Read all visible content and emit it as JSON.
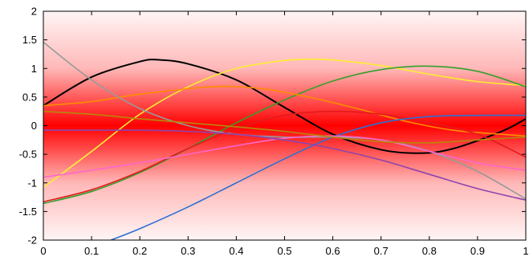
{
  "chart_data": {
    "type": "line",
    "title": "",
    "xlabel": "",
    "ylabel": "",
    "xlim": [
      0,
      1
    ],
    "ylim": [
      -2,
      2
    ],
    "grid": false,
    "x_ticks": [
      "0",
      "0.1",
      "0.2",
      "0.3",
      "0.4",
      "0.5",
      "0.6",
      "0.7",
      "0.8",
      "0.9",
      "1"
    ],
    "y_ticks": [
      "2",
      "1.5",
      "1",
      "0.5",
      "0",
      "-0.5",
      "-1",
      "-1.5",
      "-2"
    ],
    "band": {
      "description": "red shaded band, darkest at y = 0, fading to white at y = ±2",
      "color": "#ff0000"
    },
    "series": [
      {
        "color": "#000000",
        "x": [
          0,
          0.1,
          0.2,
          0.24,
          0.3,
          0.4,
          0.5,
          0.6,
          0.7,
          0.78,
          0.85,
          0.95,
          1
        ],
        "y": [
          0.35,
          0.85,
          1.12,
          1.15,
          1.08,
          0.8,
          0.32,
          -0.15,
          -0.42,
          -0.48,
          -0.4,
          -0.1,
          0.12
        ]
      },
      {
        "color": "#ffee33",
        "x": [
          0,
          0.1,
          0.2,
          0.3,
          0.4,
          0.5,
          0.55,
          0.6,
          0.7,
          0.8,
          0.9,
          1
        ],
        "y": [
          -1.08,
          -0.45,
          0.2,
          0.68,
          1.0,
          1.14,
          1.16,
          1.15,
          1.05,
          0.9,
          0.77,
          0.7
        ]
      },
      {
        "color": "#33a02c",
        "x": [
          0,
          0.1,
          0.2,
          0.3,
          0.4,
          0.5,
          0.6,
          0.7,
          0.8,
          0.9,
          1
        ],
        "y": [
          -1.36,
          -1.15,
          -0.82,
          -0.4,
          0.05,
          0.45,
          0.78,
          0.98,
          1.04,
          0.95,
          0.68
        ]
      },
      {
        "color": "#ff8c00",
        "x": [
          0,
          0.1,
          0.2,
          0.35,
          0.45,
          0.55,
          0.65,
          0.75,
          0.85,
          0.95,
          1
        ],
        "y": [
          0.35,
          0.42,
          0.55,
          0.68,
          0.65,
          0.5,
          0.3,
          0.08,
          -0.08,
          -0.15,
          -0.18
        ]
      },
      {
        "color": "#999999",
        "x": [
          0,
          0.1,
          0.2,
          0.3,
          0.4,
          0.5,
          0.6,
          0.7,
          0.8,
          0.9,
          1
        ],
        "y": [
          1.46,
          0.8,
          0.3,
          0.0,
          -0.15,
          -0.2,
          -0.2,
          -0.25,
          -0.45,
          -0.8,
          -1.28
        ]
      },
      {
        "color": "#e31a1c",
        "x": [
          0,
          0.1,
          0.2,
          0.3,
          0.4,
          0.5,
          0.6,
          0.7,
          0.8,
          0.9,
          1
        ],
        "y": [
          -1.33,
          -1.12,
          -0.8,
          -0.4,
          -0.05,
          0.18,
          0.25,
          0.2,
          0.05,
          -0.15,
          -0.55
        ]
      },
      {
        "color": "#2f6fd0",
        "x": [
          0.14,
          0.2,
          0.3,
          0.4,
          0.5,
          0.6,
          0.7,
          0.8,
          0.9,
          1
        ],
        "y": [
          -2,
          -1.8,
          -1.42,
          -1.0,
          -0.58,
          -0.2,
          0.05,
          0.16,
          0.18,
          0.18
        ]
      },
      {
        "color": "#ff66cc",
        "x": [
          0,
          0.1,
          0.2,
          0.3,
          0.4,
          0.5,
          0.6,
          0.7,
          0.8,
          0.9,
          1
        ],
        "y": [
          -0.9,
          -0.78,
          -0.65,
          -0.5,
          -0.35,
          -0.22,
          -0.18,
          -0.25,
          -0.45,
          -0.65,
          -0.78
        ]
      },
      {
        "color": "#8e44ad",
        "x": [
          0,
          0.1,
          0.2,
          0.3,
          0.4,
          0.5,
          0.6,
          0.7,
          0.8,
          0.9,
          1
        ],
        "y": [
          -0.08,
          -0.08,
          -0.08,
          -0.1,
          -0.15,
          -0.25,
          -0.4,
          -0.6,
          -0.85,
          -1.1,
          -1.3
        ]
      },
      {
        "color": "#b8860b",
        "x": [
          0,
          0.1,
          0.2,
          0.3,
          0.4,
          0.5,
          0.6,
          0.7,
          0.8,
          0.9,
          1
        ],
        "y": [
          0.25,
          0.2,
          0.12,
          0.05,
          -0.02,
          -0.1,
          -0.2,
          -0.28,
          -0.3,
          -0.25,
          -0.2
        ]
      }
    ]
  }
}
